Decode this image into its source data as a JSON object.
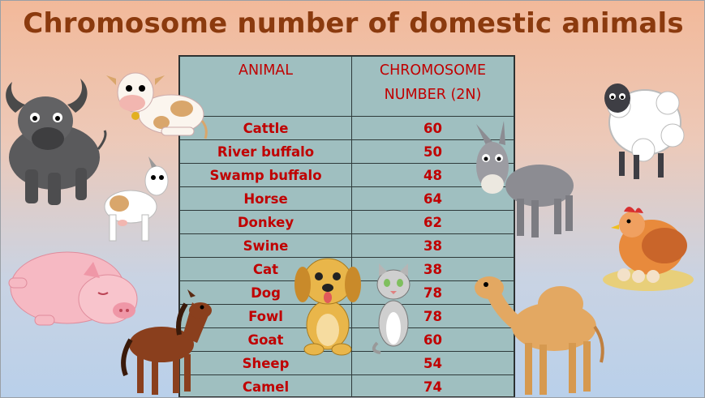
{
  "title": "Chromosome number of domestic animals",
  "table": {
    "headers": [
      "ANIMAL",
      "CHROMOSOME NUMBER (2N)"
    ],
    "rows": [
      {
        "animal": "Cattle",
        "number": "60"
      },
      {
        "animal": "River buffalo",
        "number": "50"
      },
      {
        "animal": "Swamp buffalo",
        "number": "48"
      },
      {
        "animal": "Horse",
        "number": "64"
      },
      {
        "animal": "Donkey",
        "number": "62"
      },
      {
        "animal": "Swine",
        "number": "38"
      },
      {
        "animal": "Cat",
        "number": "38"
      },
      {
        "animal": "Dog",
        "number": "78"
      },
      {
        "animal": "Fowl",
        "number": "78"
      },
      {
        "animal": "Goat",
        "number": "60"
      },
      {
        "animal": "Sheep",
        "number": "54"
      },
      {
        "animal": "Camel",
        "number": "74"
      }
    ]
  },
  "illustrations": [
    "buffalo-illustration",
    "cow-illustration",
    "goat-illustration",
    "pig-illustration",
    "horse-illustration",
    "dog-illustration",
    "cat-illustration",
    "donkey-illustration",
    "sheep-illustration",
    "hen-illustration",
    "camel-illustration"
  ],
  "colors": {
    "title": "#8b3a0e",
    "table_text": "#c00000",
    "table_bg": "#9fbfc0"
  }
}
